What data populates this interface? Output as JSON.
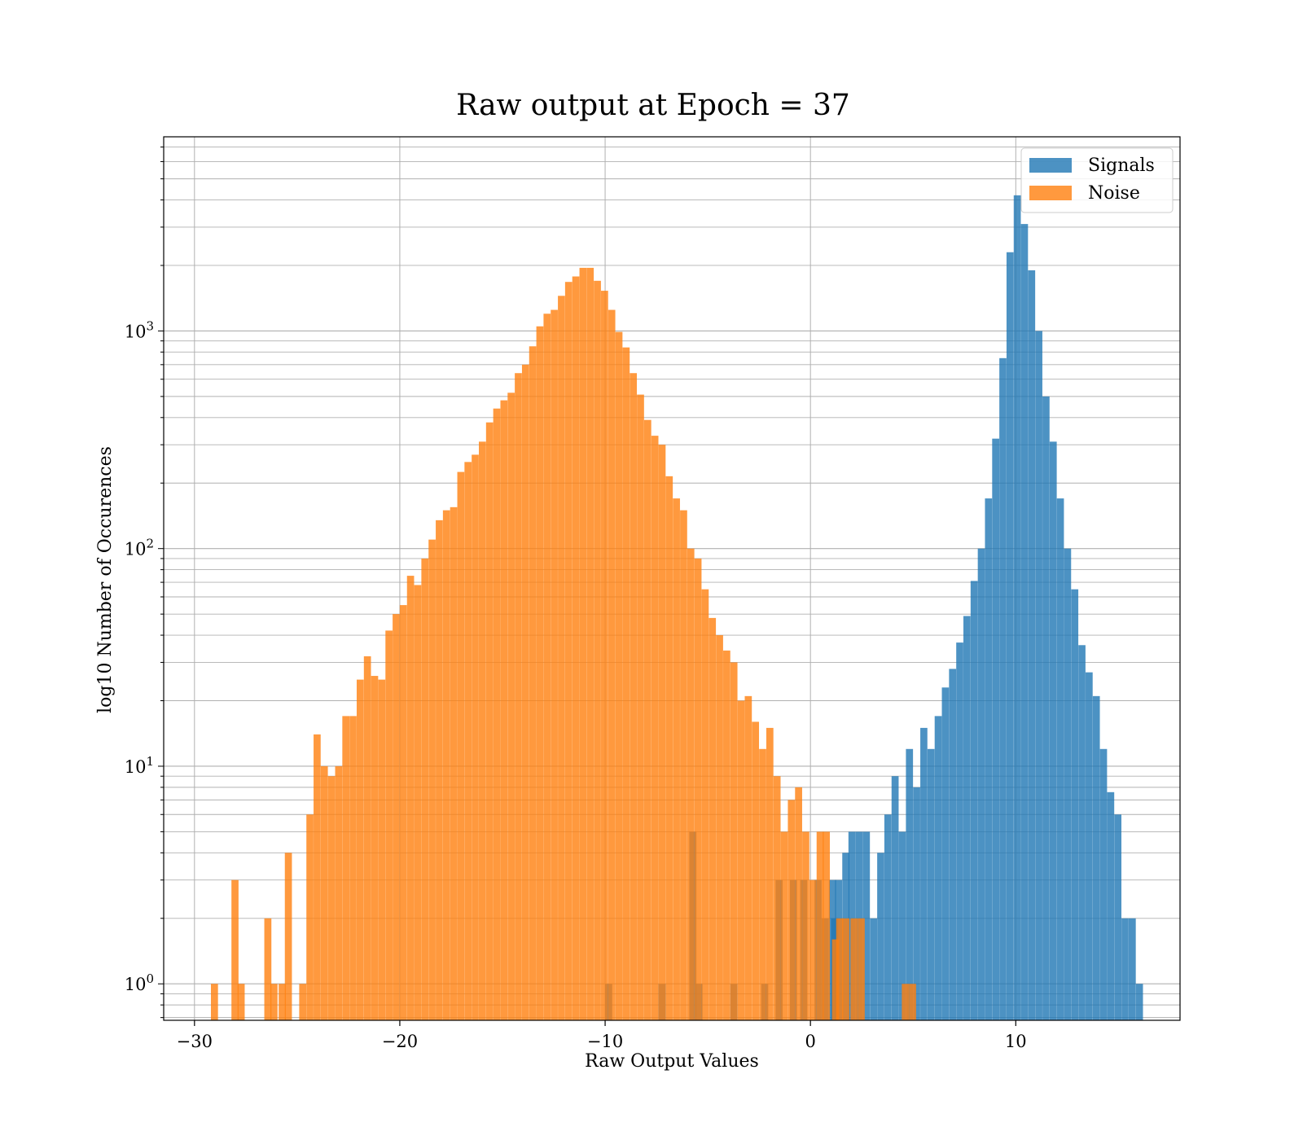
{
  "chart_data": {
    "type": "bar",
    "title": "Raw output at Epoch = 37",
    "xlabel": "Raw Output Values",
    "ylabel": "log10 Number of Occurences",
    "xlim": [
      -31.5,
      18.0
    ],
    "ylim": [
      0.68,
      7800
    ],
    "yscale": "log",
    "x_ticks": [
      -30,
      -20,
      -10,
      0,
      10
    ],
    "x_tick_labels": [
      "−30",
      "−20",
      "−10",
      "0",
      "10"
    ],
    "y_ticks": [
      1,
      10,
      100,
      1000
    ],
    "y_tick_labels": [
      {
        "base": "10",
        "exp": "0"
      },
      {
        "base": "10",
        "exp": "1"
      },
      {
        "base": "10",
        "exp": "2"
      },
      {
        "base": "10",
        "exp": "3"
      }
    ],
    "grid": true,
    "legend_position": "top-right",
    "bin_width": 0.345,
    "colors": {
      "Signals": "#1f77b4",
      "Noise": "#ff7f0e"
    },
    "series": [
      {
        "name": "Signals",
        "color": "#1f77b4",
        "opacity": 0.8,
        "bins": [
          [
            -10.0,
            1
          ],
          [
            -7.4,
            1
          ],
          [
            -5.9,
            5
          ],
          [
            -5.6,
            1
          ],
          [
            -3.9,
            1
          ],
          [
            -2.4,
            1
          ],
          [
            -1.7,
            3
          ],
          [
            -1.0,
            3
          ],
          [
            -0.5,
            3
          ],
          [
            0.2,
            3
          ],
          [
            0.55,
            2
          ],
          [
            0.9,
            3
          ],
          [
            1.0,
            2
          ],
          [
            1.2,
            3
          ],
          [
            1.55,
            4
          ],
          [
            1.85,
            5
          ],
          [
            2.2,
            5
          ],
          [
            2.55,
            5
          ],
          [
            2.9,
            2
          ],
          [
            3.25,
            4
          ],
          [
            3.6,
            6
          ],
          [
            3.95,
            9
          ],
          [
            4.3,
            5
          ],
          [
            4.65,
            12
          ],
          [
            5.0,
            8
          ],
          [
            5.35,
            15
          ],
          [
            5.7,
            12
          ],
          [
            6.05,
            17
          ],
          [
            6.4,
            23
          ],
          [
            6.75,
            28
          ],
          [
            7.1,
            37
          ],
          [
            7.45,
            49
          ],
          [
            7.8,
            71
          ],
          [
            8.15,
            100
          ],
          [
            8.5,
            170
          ],
          [
            8.85,
            320
          ],
          [
            9.2,
            750
          ],
          [
            9.55,
            2300
          ],
          [
            9.9,
            4200
          ],
          [
            10.25,
            3100
          ],
          [
            10.6,
            1900
          ],
          [
            10.95,
            1000
          ],
          [
            11.3,
            500
          ],
          [
            11.65,
            310
          ],
          [
            12.0,
            170
          ],
          [
            12.35,
            100
          ],
          [
            12.7,
            65
          ],
          [
            13.05,
            36
          ],
          [
            13.4,
            27
          ],
          [
            13.75,
            21
          ],
          [
            14.1,
            12
          ],
          [
            14.45,
            7.6
          ],
          [
            14.8,
            6
          ],
          [
            15.15,
            2
          ],
          [
            15.5,
            2
          ],
          [
            15.85,
            1
          ]
        ]
      },
      {
        "name": "Noise",
        "color": "#ff7f0e",
        "opacity": 0.8,
        "bins": [
          [
            -29.2,
            1
          ],
          [
            -28.2,
            3
          ],
          [
            -27.9,
            1
          ],
          [
            -26.6,
            2
          ],
          [
            -26.3,
            1
          ],
          [
            -25.9,
            1
          ],
          [
            -25.6,
            4
          ],
          [
            -24.9,
            1
          ],
          [
            -24.55,
            6
          ],
          [
            -24.2,
            14
          ],
          [
            -23.85,
            10
          ],
          [
            -23.5,
            9
          ],
          [
            -23.15,
            10
          ],
          [
            -22.8,
            17
          ],
          [
            -22.45,
            17
          ],
          [
            -22.1,
            25
          ],
          [
            -21.75,
            32
          ],
          [
            -21.4,
            26
          ],
          [
            -21.05,
            25
          ],
          [
            -20.7,
            42
          ],
          [
            -20.35,
            50
          ],
          [
            -20.0,
            55
          ],
          [
            -19.65,
            75
          ],
          [
            -19.3,
            68
          ],
          [
            -18.95,
            90
          ],
          [
            -18.6,
            110
          ],
          [
            -18.25,
            135
          ],
          [
            -17.9,
            150
          ],
          [
            -17.55,
            155
          ],
          [
            -17.2,
            225
          ],
          [
            -16.85,
            250
          ],
          [
            -16.5,
            270
          ],
          [
            -16.15,
            310
          ],
          [
            -15.8,
            380
          ],
          [
            -15.45,
            440
          ],
          [
            -15.1,
            480
          ],
          [
            -14.75,
            520
          ],
          [
            -14.4,
            640
          ],
          [
            -14.05,
            700
          ],
          [
            -13.7,
            850
          ],
          [
            -13.35,
            1050
          ],
          [
            -13.0,
            1200
          ],
          [
            -12.65,
            1250
          ],
          [
            -12.3,
            1450
          ],
          [
            -11.95,
            1680
          ],
          [
            -11.6,
            1780
          ],
          [
            -11.25,
            1950
          ],
          [
            -10.9,
            1950
          ],
          [
            -10.55,
            1700
          ],
          [
            -10.2,
            1530
          ],
          [
            -9.85,
            1250
          ],
          [
            -9.5,
            990
          ],
          [
            -9.15,
            840
          ],
          [
            -8.8,
            640
          ],
          [
            -8.45,
            510
          ],
          [
            -8.1,
            390
          ],
          [
            -7.75,
            330
          ],
          [
            -7.4,
            300
          ],
          [
            -7.05,
            215
          ],
          [
            -6.7,
            170
          ],
          [
            -6.35,
            150
          ],
          [
            -6.0,
            100
          ],
          [
            -5.65,
            90
          ],
          [
            -5.3,
            65
          ],
          [
            -4.95,
            48
          ],
          [
            -4.6,
            40
          ],
          [
            -4.25,
            34
          ],
          [
            -3.9,
            30
          ],
          [
            -3.55,
            20
          ],
          [
            -3.2,
            21
          ],
          [
            -2.85,
            16
          ],
          [
            -2.5,
            12
          ],
          [
            -2.15,
            15
          ],
          [
            -1.8,
            9
          ],
          [
            -1.45,
            5
          ],
          [
            -1.1,
            7
          ],
          [
            -0.75,
            8
          ],
          [
            -0.4,
            5
          ],
          [
            -0.05,
            3
          ],
          [
            0.3,
            5
          ],
          [
            0.6,
            5
          ],
          [
            1.05,
            1.6
          ],
          [
            1.25,
            2
          ],
          [
            1.55,
            2
          ],
          [
            1.95,
            2
          ],
          [
            2.3,
            2
          ],
          [
            4.45,
            1
          ],
          [
            4.8,
            1
          ]
        ]
      }
    ]
  }
}
